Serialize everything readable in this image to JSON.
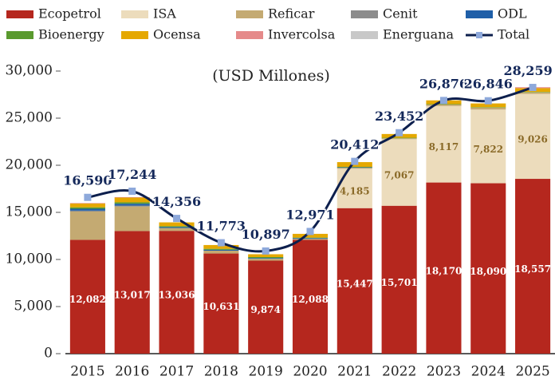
{
  "chart_data": {
    "type": "bar",
    "stacked": true,
    "annotation": "(USD Millones)",
    "categories": [
      "2015",
      "2016",
      "2017",
      "2018",
      "2019",
      "2020",
      "2021",
      "2022",
      "2023",
      "2024",
      "2025"
    ],
    "ylim": [
      0,
      30000
    ],
    "yticks": [
      0,
      {
        "value": 5000,
        "label": "5,000"
      },
      {
        "value": 10000,
        "label": "10,000"
      },
      {
        "value": 15000,
        "label": "15,000"
      },
      {
        "value": 20000,
        "label": "20,000"
      },
      {
        "value": 25000,
        "label": "25,000"
      },
      {
        "value": 30000,
        "label": "30,000"
      }
    ],
    "series": [
      {
        "name": "Ecopetrol",
        "color": "#b5271e",
        "label_color": "#ffffff",
        "values": [
          12082,
          13017,
          13036,
          10631,
          9874,
          12088,
          15447,
          15701,
          18170,
          18090,
          18557
        ],
        "value_labels": [
          "12,082",
          "13,017",
          "13,036",
          "10,631",
          "9,874",
          "12,088",
          "15,447",
          "15,701",
          "18,170",
          "18,090",
          "18,557"
        ]
      },
      {
        "name": "ISA",
        "color": "#ecdcbc",
        "label_color": "#8a6a28",
        "values": [
          0,
          0,
          0,
          0,
          0,
          0,
          4185,
          7067,
          8117,
          7822,
          9026
        ],
        "value_labels": [
          null,
          null,
          null,
          null,
          null,
          null,
          "4,185",
          "7,067",
          "8,117",
          "7,822",
          "9,026"
        ]
      },
      {
        "name": "Reficar",
        "color": "#c4aa72",
        "values": [
          3000,
          2600,
          300,
          300,
          200,
          100,
          100,
          100,
          150,
          200,
          150
        ]
      },
      {
        "name": "Cenit",
        "color": "#8c8c8c",
        "values": [
          100,
          100,
          0,
          0,
          0,
          0,
          0,
          0,
          0,
          0,
          0
        ]
      },
      {
        "name": "ODL",
        "color": "#1f5fa8",
        "values": [
          200,
          200,
          100,
          100,
          80,
          80,
          50,
          0,
          0,
          0,
          0
        ]
      },
      {
        "name": "Bioenergy",
        "color": "#5a9a2e",
        "values": [
          150,
          150,
          100,
          100,
          100,
          50,
          50,
          50,
          50,
          50,
          50
        ]
      },
      {
        "name": "Ocensa",
        "color": "#e5a800",
        "values": [
          400,
          500,
          400,
          400,
          300,
          400,
          500,
          400,
          400,
          400,
          400
        ]
      },
      {
        "name": "Invercolsa",
        "color": "#e58a8a",
        "values": [
          50,
          50,
          0,
          0,
          0,
          0,
          0,
          0,
          0,
          0,
          100
        ]
      },
      {
        "name": "Energuana",
        "color": "#c8c8c8",
        "values": [
          0,
          0,
          0,
          0,
          0,
          0,
          0,
          0,
          0,
          0,
          0
        ]
      },
      {
        "name": "Total",
        "type": "line",
        "color": "#0d1f4d",
        "marker_color": "#8ea9db",
        "values": [
          16590,
          17244,
          14356,
          11773,
          10897,
          12971,
          20412,
          23452,
          26876,
          26846,
          28259
        ],
        "value_labels": [
          "16,590",
          "17,244",
          "14,356",
          "11,773",
          "10,897",
          "12,971",
          "20,412",
          "23,452",
          "26,876",
          "26,846",
          "28,259"
        ]
      }
    ]
  }
}
